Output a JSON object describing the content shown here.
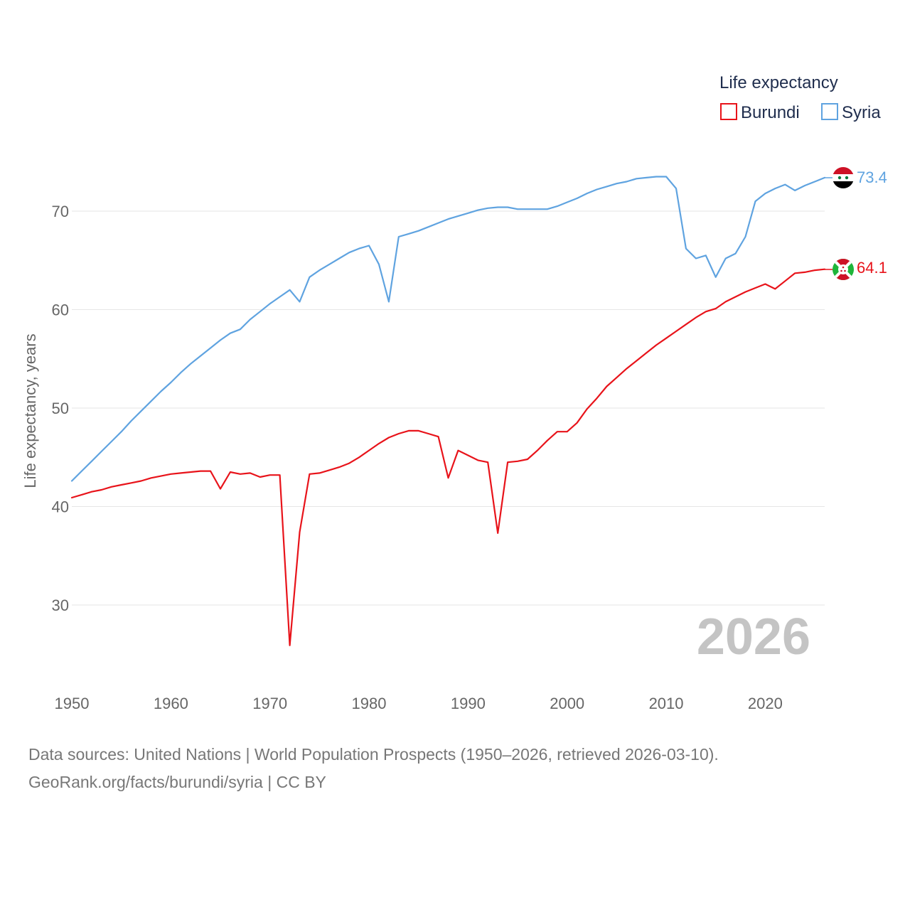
{
  "chart_data": {
    "type": "line",
    "title": "Life expectancy",
    "xlabel": "",
    "ylabel": "Life expectancy, years",
    "xlim": [
      1950,
      2026
    ],
    "ylim": [
      24,
      76
    ],
    "y_ticks": [
      30,
      40,
      50,
      60,
      70
    ],
    "x_ticks": [
      1950,
      1960,
      1970,
      1980,
      1990,
      2000,
      2010,
      2020
    ],
    "grid": true,
    "legend_title": "Life expectancy",
    "legend_position": "top-right",
    "current_year": "2026",
    "series": [
      {
        "name": "Burundi",
        "color": "#e8131a",
        "flag_icon": "burundi-flag-icon",
        "end_label": "64.1",
        "x": [
          1950,
          1951,
          1952,
          1953,
          1954,
          1955,
          1956,
          1957,
          1958,
          1959,
          1960,
          1961,
          1962,
          1963,
          1964,
          1965,
          1966,
          1967,
          1968,
          1969,
          1970,
          1971,
          1972,
          1973,
          1974,
          1975,
          1976,
          1977,
          1978,
          1979,
          1980,
          1981,
          1982,
          1983,
          1984,
          1985,
          1986,
          1987,
          1988,
          1989,
          1990,
          1991,
          1992,
          1993,
          1994,
          1995,
          1996,
          1997,
          1998,
          1999,
          2000,
          2001,
          2002,
          2003,
          2004,
          2005,
          2006,
          2007,
          2008,
          2009,
          2010,
          2011,
          2012,
          2013,
          2014,
          2015,
          2016,
          2017,
          2018,
          2019,
          2020,
          2021,
          2022,
          2023,
          2024,
          2025,
          2026
        ],
        "values": [
          40.9,
          41.2,
          41.5,
          41.7,
          42.0,
          42.2,
          42.4,
          42.6,
          42.9,
          43.1,
          43.3,
          43.4,
          43.5,
          43.6,
          43.6,
          41.8,
          43.5,
          43.3,
          43.4,
          43.0,
          43.2,
          43.2,
          25.9,
          37.4,
          43.3,
          43.4,
          43.7,
          44.0,
          44.4,
          45.0,
          45.7,
          46.4,
          47.0,
          47.4,
          47.7,
          47.7,
          47.4,
          47.1,
          42.9,
          45.7,
          45.2,
          44.7,
          44.5,
          37.3,
          44.5,
          44.6,
          44.8,
          45.7,
          46.7,
          47.6,
          47.6,
          48.5,
          49.9,
          51.0,
          52.2,
          53.1,
          54.0,
          54.8,
          55.6,
          56.4,
          57.1,
          57.8,
          58.5,
          59.2,
          59.8,
          60.1,
          60.8,
          61.3,
          61.8,
          62.2,
          62.6,
          62.1,
          62.9,
          63.7,
          63.8,
          64.0,
          64.1
        ]
      },
      {
        "name": "Syria",
        "color": "#5fa3e0",
        "flag_icon": "syria-flag-icon",
        "end_label": "73.4",
        "x": [
          1950,
          1951,
          1952,
          1953,
          1954,
          1955,
          1956,
          1957,
          1958,
          1959,
          1960,
          1961,
          1962,
          1963,
          1964,
          1965,
          1966,
          1967,
          1968,
          1969,
          1970,
          1971,
          1972,
          1973,
          1974,
          1975,
          1976,
          1977,
          1978,
          1979,
          1980,
          1981,
          1982,
          1983,
          1984,
          1985,
          1986,
          1987,
          1988,
          1989,
          1990,
          1991,
          1992,
          1993,
          1994,
          1995,
          1996,
          1997,
          1998,
          1999,
          2000,
          2001,
          2002,
          2003,
          2004,
          2005,
          2006,
          2007,
          2008,
          2009,
          2010,
          2011,
          2012,
          2013,
          2014,
          2015,
          2016,
          2017,
          2018,
          2019,
          2020,
          2021,
          2022,
          2023,
          2024,
          2025,
          2026
        ],
        "values": [
          42.6,
          43.6,
          44.6,
          45.6,
          46.6,
          47.6,
          48.7,
          49.7,
          50.7,
          51.7,
          52.6,
          53.6,
          54.5,
          55.3,
          56.1,
          56.9,
          57.6,
          58.0,
          59.0,
          59.8,
          60.6,
          61.3,
          62.0,
          60.8,
          63.3,
          64.0,
          64.6,
          65.2,
          65.8,
          66.2,
          66.5,
          64.6,
          60.8,
          67.4,
          67.7,
          68.0,
          68.4,
          68.8,
          69.2,
          69.5,
          69.8,
          70.1,
          70.3,
          70.4,
          70.4,
          70.2,
          70.2,
          70.2,
          70.2,
          70.5,
          70.9,
          71.3,
          71.8,
          72.2,
          72.5,
          72.8,
          73.0,
          73.3,
          73.4,
          73.5,
          73.5,
          72.3,
          66.2,
          65.2,
          65.5,
          63.3,
          65.2,
          65.7,
          67.4,
          71.0,
          71.8,
          72.3,
          72.7,
          72.1,
          72.6,
          73.0,
          73.4
        ]
      }
    ]
  },
  "source_lines": [
    "Data sources: United Nations | World Population Prospects (1950–2026, retrieved 2026-03-10).",
    "GeoRank.org/facts/burundi/syria | CC BY"
  ]
}
